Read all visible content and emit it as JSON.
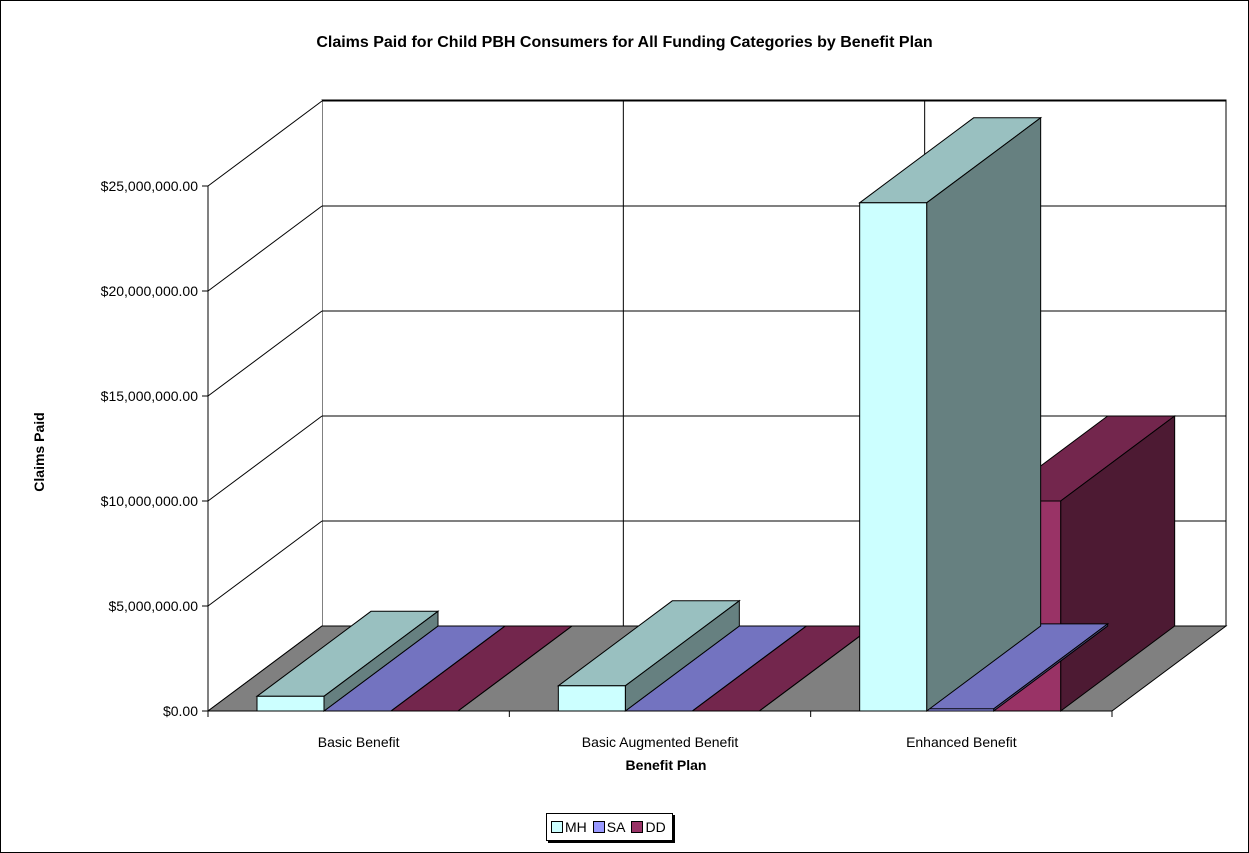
{
  "chart_data": {
    "type": "bar",
    "title": "Claims Paid for Child PBH Consumers for All Funding Categories by Benefit Plan",
    "xlabel": "Benefit Plan",
    "ylabel": "Claims Paid",
    "categories": [
      "Basic Benefit",
      "Basic Augmented Benefit",
      "Enhanced Benefit"
    ],
    "series": [
      {
        "name": "MH",
        "values": [
          700000,
          1200000,
          24200000
        ]
      },
      {
        "name": "SA",
        "values": [
          0,
          0,
          100000
        ]
      },
      {
        "name": "DD",
        "values": [
          0,
          0,
          10000000
        ]
      }
    ],
    "ylim": [
      0,
      25000000
    ],
    "yticks": [
      "$0.00",
      "$5,000,000.00",
      "$10,000,000.00",
      "$15,000,000.00",
      "$20,000,000.00",
      "$25,000,000.00"
    ],
    "ytick_values": [
      0,
      5000000,
      10000000,
      15000000,
      20000000,
      25000000
    ],
    "grid": true,
    "three_d": true,
    "legend_position": "bottom",
    "colors": {
      "MH": {
        "front": "#ccffff",
        "top": "#99c0c0",
        "side": "#668080"
      },
      "SA": {
        "front": "#9999ff",
        "top": "#7373c0",
        "side": "#4d4d80"
      },
      "DD": {
        "front": "#993366",
        "top": "#73264d",
        "side": "#4d1a33"
      },
      "floor": "#808080",
      "walls": "#ffffff"
    }
  }
}
